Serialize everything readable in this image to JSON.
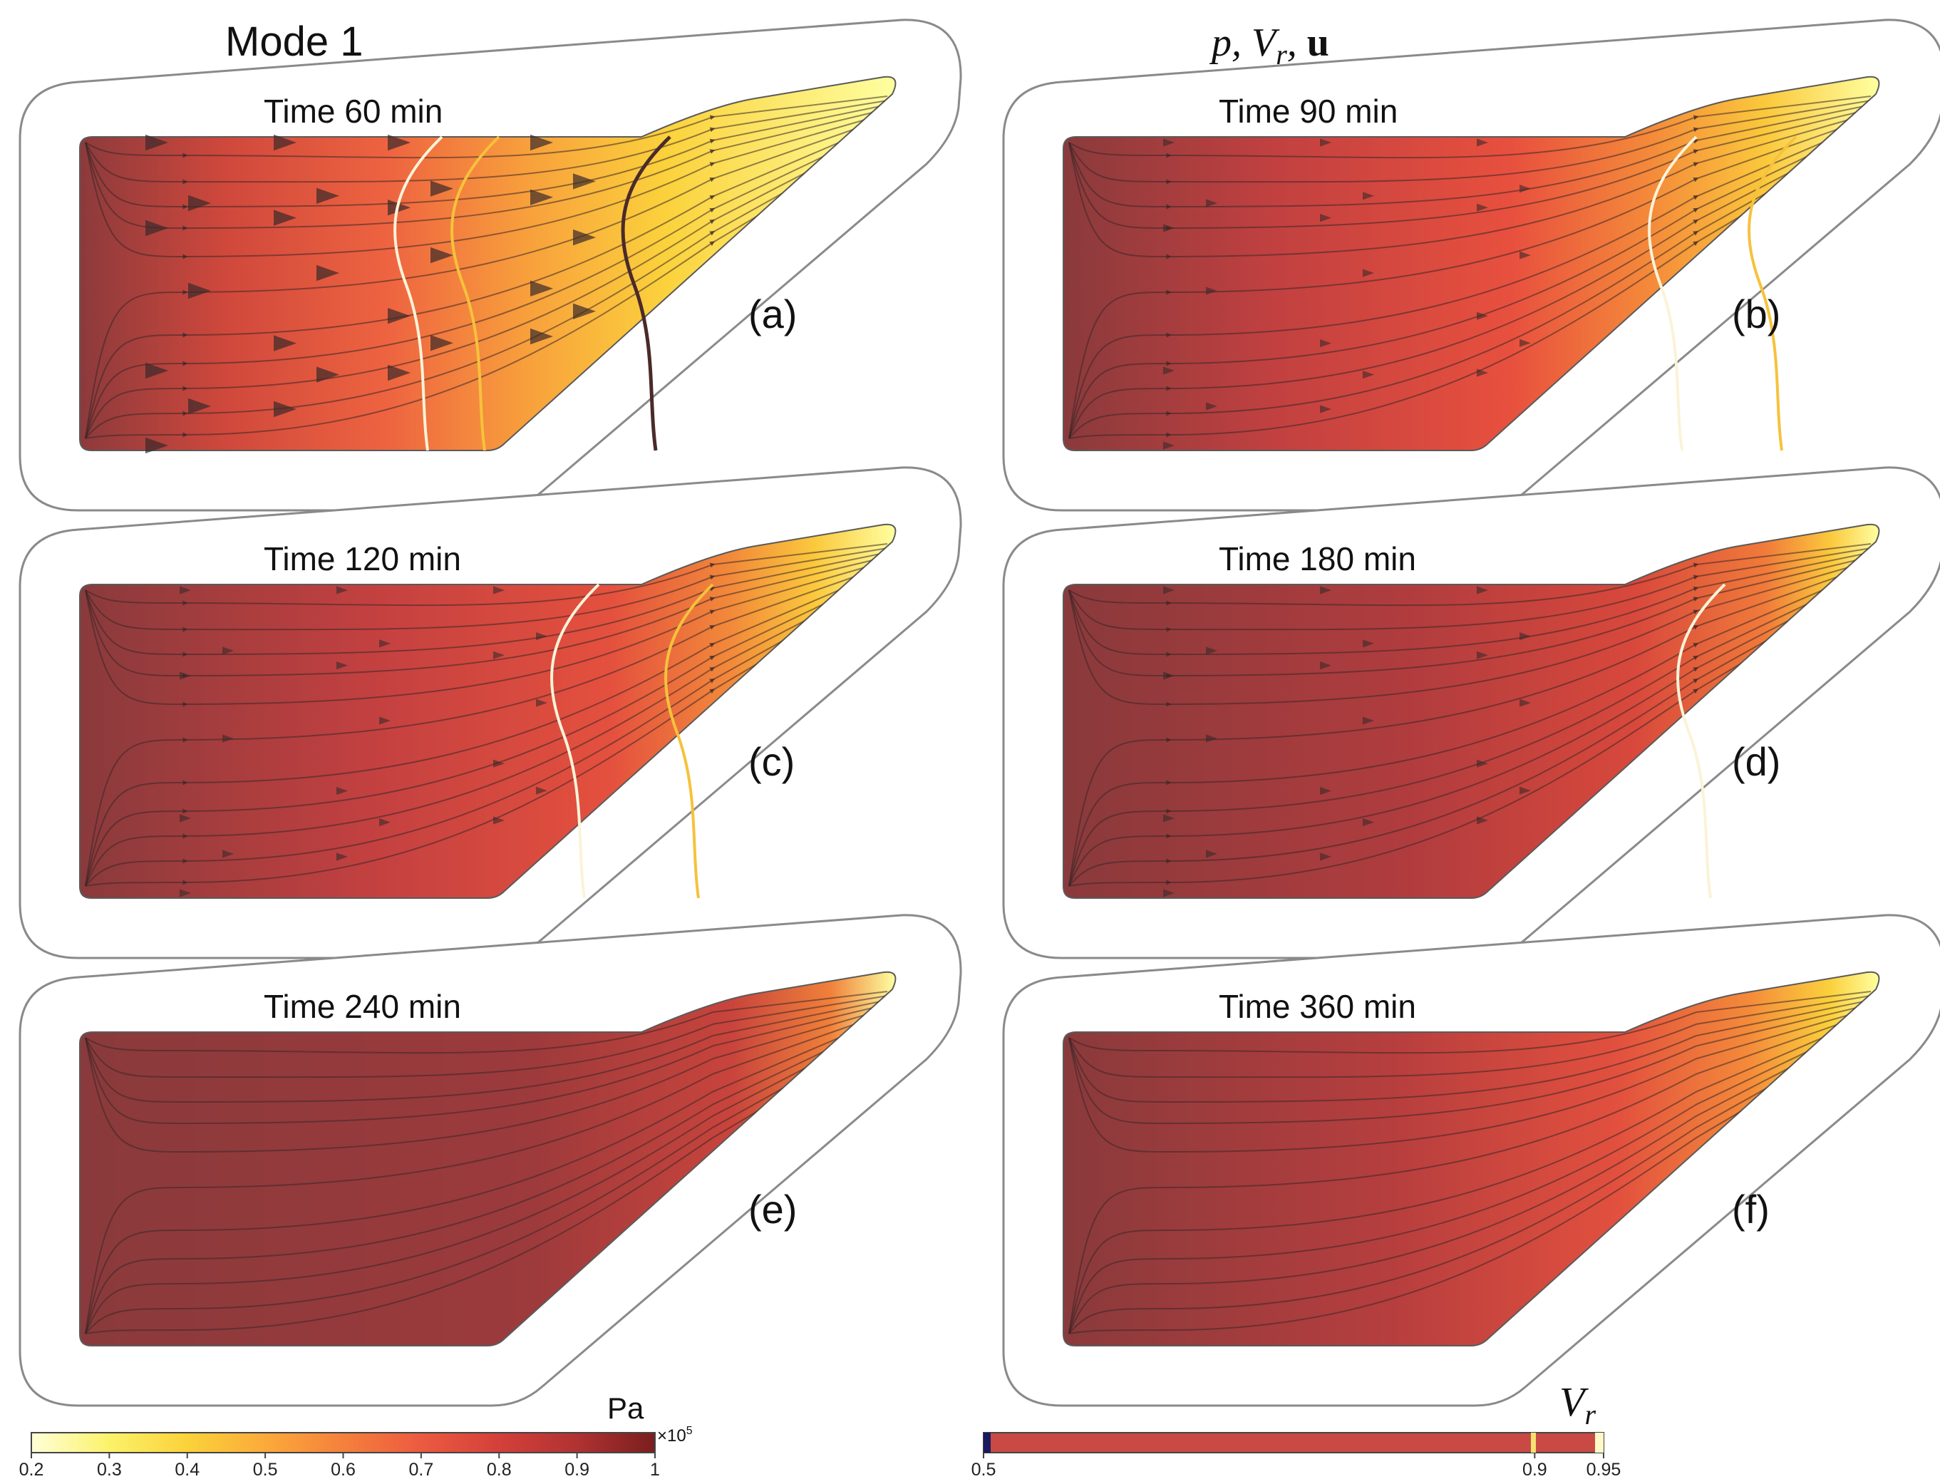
{
  "figure": {
    "left_title": "Mode 1",
    "right_title": {
      "p": "p",
      "sep1": ", ",
      "v": "V",
      "r": "r",
      "sep2": ", ",
      "u": "u"
    }
  },
  "panels": [
    {
      "id": "a",
      "time": "Time 60 min",
      "label": "(a)",
      "progress": 0.0,
      "fronts": 3,
      "streamlines": true,
      "arrows": "large"
    },
    {
      "id": "b",
      "time": "Time 90 min",
      "label": "(b)",
      "progress": 0.2,
      "fronts": 2,
      "streamlines": true,
      "arrows": "small"
    },
    {
      "id": "c",
      "time": "Time 120 min",
      "label": "(c)",
      "progress": 0.4,
      "fronts": 2,
      "streamlines": true,
      "arrows": "small"
    },
    {
      "id": "d",
      "time": "Time 180 min",
      "label": "(d)",
      "progress": 0.6,
      "fronts": 1,
      "streamlines": true,
      "arrows": "small"
    },
    {
      "id": "e",
      "time": "Time 240 min",
      "label": "(e)",
      "progress": 0.85,
      "fronts": 0,
      "streamlines": true,
      "arrows": "none"
    },
    {
      "id": "f",
      "time": "Time 360 min",
      "label": "(f)",
      "progress": 0.7,
      "fronts": 0,
      "streamlines": true,
      "arrows": "none"
    }
  ],
  "pressure_colorbar": {
    "unit": "Pa",
    "multiplier": "×10",
    "exponent": "5",
    "ticks": [
      "0.2",
      "0.3",
      "0.4",
      "0.5",
      "0.6",
      "0.7",
      "0.8",
      "0.9",
      "1"
    ],
    "range": [
      0.2,
      1.0
    ],
    "colors": [
      "#ffffd8",
      "#fbf26a",
      "#fbc83a",
      "#f99a3a",
      "#f06a42",
      "#d8463a",
      "#b83232",
      "#7a1e1e"
    ]
  },
  "vr_colorbar": {
    "label_v": "V",
    "label_r": "r",
    "ticks": [
      "0.5",
      "0.9",
      "0.95"
    ],
    "range": [
      0.5,
      0.95
    ],
    "color": "#c94a44"
  }
}
